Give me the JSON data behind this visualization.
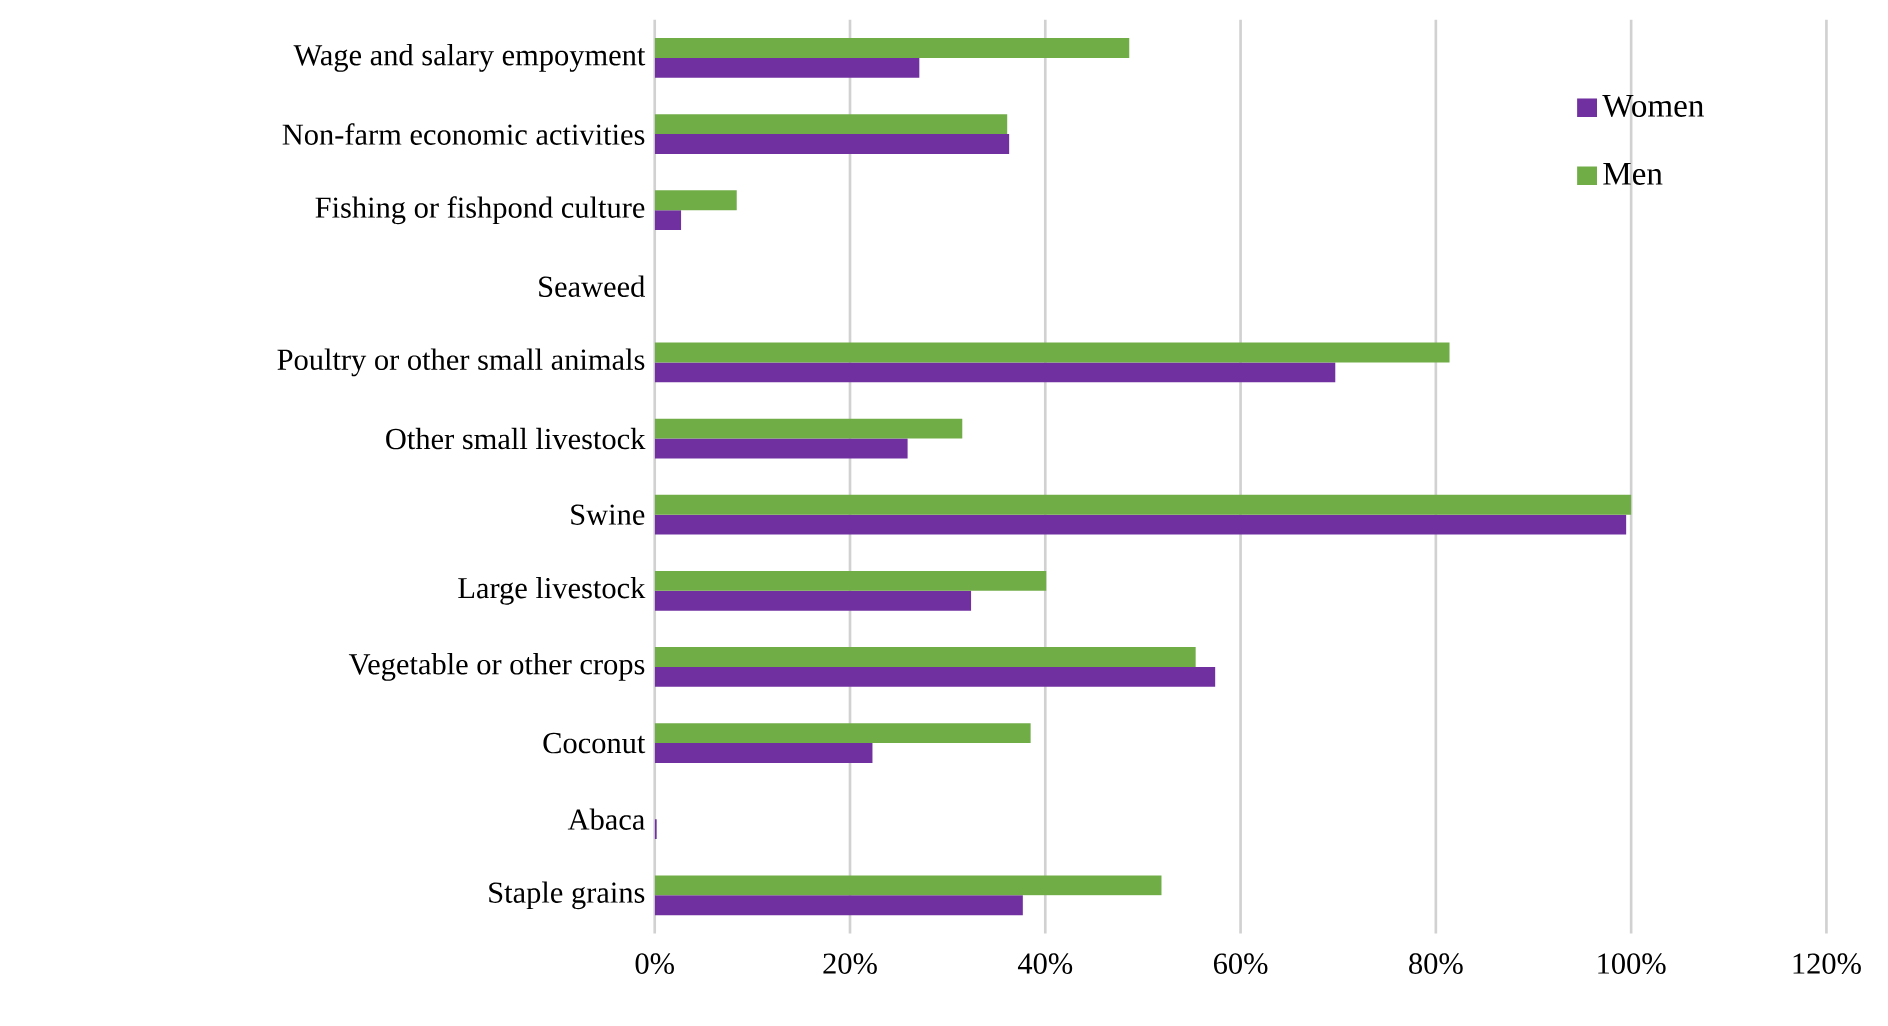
{
  "chart_data": {
    "type": "bar",
    "orientation": "horizontal",
    "categories": [
      "Wage and salary empoyment",
      "Non-farm economic activities",
      "Fishing or fishpond culture",
      "Seaweed",
      "Poultry or other small animals",
      "Other small livestock",
      "Swine",
      "Large livestock",
      "Vegetable or other crops",
      "Coconut",
      "Abaca",
      "Staple grains"
    ],
    "series": [
      {
        "name": "Women",
        "color": "#7030a0",
        "values": [
          27.1,
          36.3,
          2.7,
          0,
          69.7,
          25.9,
          99.5,
          32.4,
          57.4,
          22.3,
          0.2,
          37.7
        ]
      },
      {
        "name": "Men",
        "color": "#70ad47",
        "values": [
          48.6,
          36.1,
          8.4,
          0,
          81.4,
          31.5,
          100,
          40.1,
          55.4,
          38.5,
          0,
          51.9
        ]
      }
    ],
    "xlim": [
      0,
      120
    ],
    "xticks": [
      {
        "value": 0,
        "label": "0%"
      },
      {
        "value": 20,
        "label": "20%"
      },
      {
        "value": 40,
        "label": "40%"
      },
      {
        "value": 60,
        "label": "60%"
      },
      {
        "value": 80,
        "label": "80%"
      },
      {
        "value": 100,
        "label": "100%"
      },
      {
        "value": 120,
        "label": "120%"
      }
    ],
    "grid": "x",
    "legend": "top right"
  }
}
